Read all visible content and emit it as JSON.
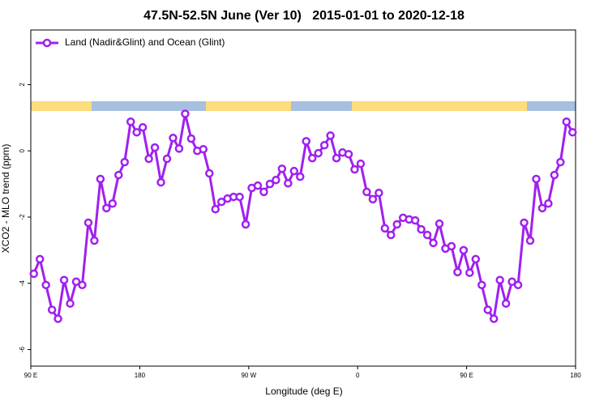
{
  "chart_data": {
    "type": "line",
    "title": "47.5N-52.5N June (Ver 10)   2015-01-01 to 2020-12-18",
    "x_label": "Longitude (deg E)",
    "y_label": "XCO2 - MLO trend (ppm)",
    "x": [
      92.5,
      97.5,
      102.5,
      107.5,
      112.5,
      117.5,
      122.5,
      127.5,
      132.5,
      137.5,
      142.5,
      147.5,
      152.5,
      157.5,
      162.5,
      167.5,
      172.5,
      177.5,
      182.5,
      187.5,
      192.5,
      197.5,
      202.5,
      207.5,
      212.5,
      217.5,
      222.5,
      227.5,
      232.5,
      237.5,
      242.5,
      247.5,
      252.5,
      257.5,
      262.5,
      267.5,
      272.5,
      277.5,
      282.5,
      287.5,
      292.5,
      297.5,
      302.5,
      307.5,
      312.5,
      317.5,
      322.5,
      327.5,
      332.5,
      337.5,
      342.5,
      347.5,
      352.5,
      357.5,
      362.5,
      367.5,
      372.5,
      377.5,
      382.5,
      387.5,
      392.5,
      397.5,
      402.5,
      407.5,
      412.5,
      417.5,
      422.5,
      427.5,
      432.5,
      437.5,
      442.5,
      447.5,
      452.5,
      457.5,
      462.5,
      467.5,
      472.5,
      477.5,
      482.5,
      487.5,
      492.5,
      497.5,
      502.5,
      507.5,
      512.5,
      517.5,
      522.5,
      527.5,
      532.5,
      537.5
    ],
    "series": [
      {
        "name": "Land (Nadir&Glint) and Ocean (Glint)",
        "color": "#a020f0",
        "values": [
          -3.71,
          -3.27,
          -4.05,
          -4.8,
          -5.07,
          -3.9,
          -4.61,
          -3.95,
          -4.05,
          -2.17,
          -2.71,
          -0.85,
          -1.73,
          -1.59,
          -0.73,
          -0.34,
          0.88,
          0.56,
          0.71,
          -0.24,
          0.1,
          -0.95,
          -0.24,
          0.39,
          0.07,
          1.12,
          0.37,
          0.0,
          0.05,
          -0.68,
          -1.76,
          -1.54,
          -1.44,
          -1.39,
          -1.39,
          -2.22,
          -1.12,
          -1.05,
          -1.24,
          -1.0,
          -0.88,
          -0.54,
          -0.98,
          -0.61,
          -0.78,
          0.29,
          -0.22,
          -0.07,
          0.17,
          0.46,
          -0.22,
          -0.05,
          -0.1,
          -0.56,
          -0.39,
          -1.24,
          -1.46,
          -1.27,
          -2.34,
          -2.54,
          -2.22,
          -2.02,
          -2.07,
          -2.1,
          -2.37,
          -2.54,
          -2.78,
          -2.2,
          -2.95,
          -2.88,
          -3.66,
          -3.0,
          -3.68,
          -3.27,
          -4.05,
          -4.8,
          -5.07,
          -3.9,
          -4.61,
          -3.95,
          -4.05,
          -2.17,
          -2.71,
          -0.85,
          -1.73,
          -1.59,
          -0.73,
          -0.34,
          0.88,
          0.56
        ]
      }
    ],
    "xlim": [
      90,
      540
    ],
    "ylim": [
      -6.5,
      3.65
    ],
    "xticks": [
      {
        "value": 90,
        "label": "90 E"
      },
      180,
      {
        "value": 270,
        "label": "90 W"
      },
      {
        "value": 360,
        "label": "0"
      },
      {
        "value": 450,
        "label": "90 E"
      },
      {
        "value": 540,
        "label": "180"
      }
    ],
    "yticks": [
      -6,
      -4,
      -2,
      0,
      2
    ],
    "legend": "upper left"
  }
}
